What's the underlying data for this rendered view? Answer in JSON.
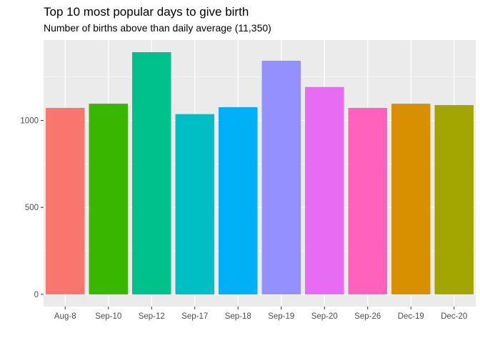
{
  "chart_data": {
    "type": "bar",
    "title": "Top 10 most popular days to give birth",
    "subtitle": "Number of births above than daily average (11,350)",
    "xlabel": "",
    "ylabel": "",
    "categories": [
      "Aug-8",
      "Sep-10",
      "Sep-12",
      "Sep-17",
      "Sep-18",
      "Sep-19",
      "Sep-20",
      "Sep-26",
      "Dec-19",
      "Dec-20"
    ],
    "values": [
      1072,
      1096,
      1392,
      1036,
      1076,
      1343,
      1192,
      1072,
      1096,
      1088
    ],
    "colors": [
      "#F8766D",
      "#39B600",
      "#00C08B",
      "#00BFC4",
      "#00B0F6",
      "#9590FF",
      "#E76BF3",
      "#FF62BC",
      "#D89000",
      "#A3A500"
    ],
    "yticks": [
      0,
      500,
      1000
    ],
    "ylim": [
      -70,
      1462
    ],
    "grid": true,
    "legend": "none",
    "panel_background": "#EBEBEB"
  }
}
